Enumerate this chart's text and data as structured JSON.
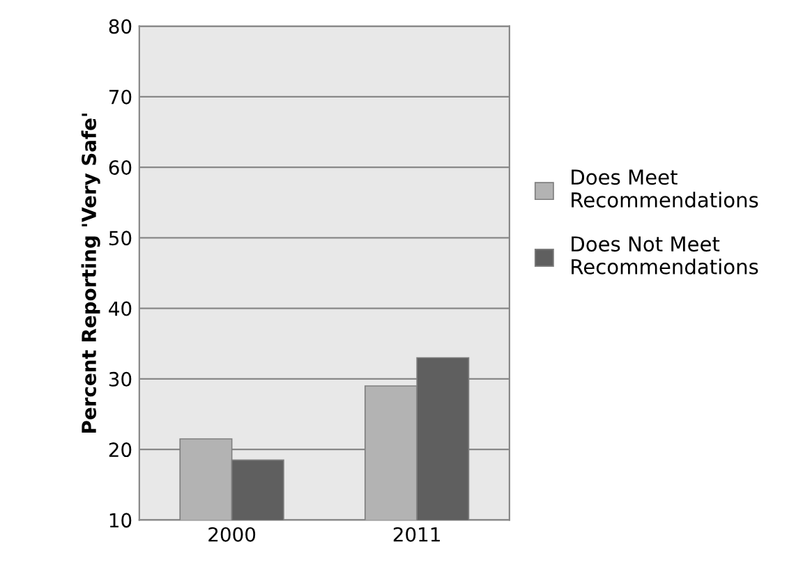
{
  "chart_data": {
    "type": "bar",
    "ylabel": "Percent Reporting 'Very Safe'",
    "categories": [
      "2000",
      "2011"
    ],
    "series": [
      {
        "name": "Does Meet\nRecommendations",
        "color": "#b3b3b3",
        "values": [
          21.5,
          29
        ]
      },
      {
        "name": "Does Not Meet\nRecommendations",
        "color": "#5f5f5f",
        "values": [
          18.5,
          33
        ]
      }
    ],
    "ylim": [
      10,
      80
    ],
    "yticks": [
      10,
      20,
      30,
      40,
      50,
      60,
      70,
      80
    ],
    "grid": "y",
    "legend": "right"
  }
}
